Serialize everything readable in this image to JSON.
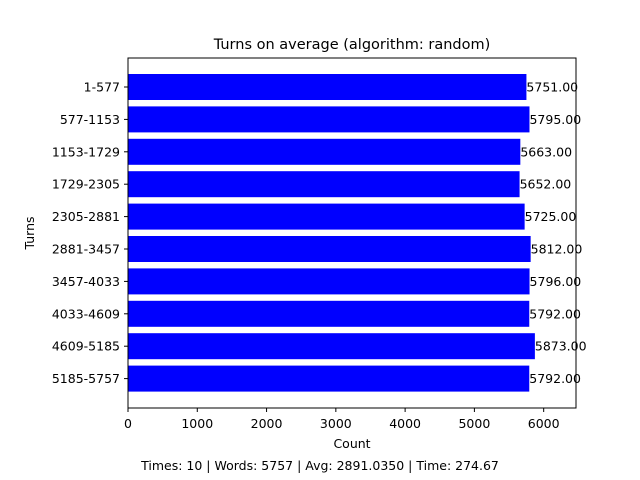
{
  "chart_data": {
    "type": "bar",
    "orientation": "horizontal",
    "title": "Turns on average (algorithm: random)",
    "xlabel": "Count",
    "ylabel": "Turns",
    "categories": [
      "1-577",
      "577-1153",
      "1153-1729",
      "1729-2305",
      "2305-2881",
      "2881-3457",
      "3457-4033",
      "4033-4609",
      "4609-5185",
      "5185-5757"
    ],
    "values": [
      5751,
      5795,
      5663,
      5652,
      5725,
      5812,
      5796,
      5792,
      5873,
      5792
    ],
    "value_labels": [
      "5751.00",
      "5795.00",
      "5663.00",
      "5652.00",
      "5725.00",
      "5812.00",
      "5796.00",
      "5792.00",
      "5873.00",
      "5792.00"
    ],
    "xlim": [
      0,
      6466.5
    ],
    "xticks": [
      0,
      1000,
      2000,
      3000,
      4000,
      5000,
      6000
    ],
    "bar_color": "#0000ff",
    "grid": false
  },
  "footer": {
    "text": "Times: 10 | Words: 5757 | Avg: 2891.0350 | Time: 274.67"
  }
}
